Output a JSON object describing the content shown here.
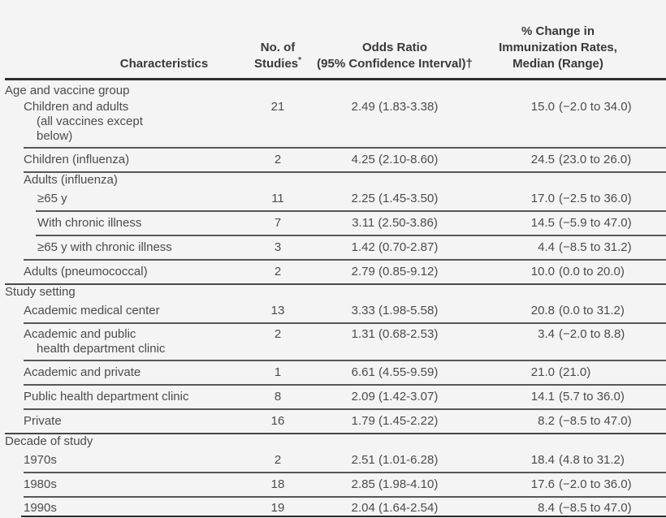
{
  "colors": {
    "background": "#f5f4f4",
    "body_text": "#4b4b4d",
    "header_text": "#39393b",
    "rule_gray": "#57575a",
    "rule_dark": "#2e2e30"
  },
  "table": {
    "header": {
      "characteristics": "Characteristics",
      "no_of_studies": [
        "No. of",
        "Studies"
      ],
      "no_of_studies_sup": "*",
      "odds_ratio": [
        "Odds Ratio",
        "(95% Confidence Interval)†"
      ],
      "pct_change": [
        "% Change in",
        "Immunization Rates,",
        "Median (Range)"
      ]
    },
    "rows": [
      {
        "type": "group",
        "indent": 0,
        "lines": [
          "Age and vaccine group"
        ],
        "rule": "none",
        "first": true
      },
      {
        "type": "data",
        "indent": 1,
        "lines": [
          "Children and adults",
          "(all vaccines except",
          "below)"
        ],
        "studies": "21",
        "odds_ratio": "2.49 (1.83-3.38)",
        "pct_median": "15.0",
        "pct_range": "(−2.0 to 34.0)",
        "rule": "thin-l1"
      },
      {
        "type": "data",
        "indent": 1,
        "lines": [
          "Children (influenza)"
        ],
        "studies": "2",
        "odds_ratio": "4.25 (2.10-8.60)",
        "pct_median": "24.5",
        "pct_range": "(23.0 to 26.0)",
        "rule": "thin-l1"
      },
      {
        "type": "group",
        "indent": 1,
        "lines": [
          "Adults (influenza)"
        ],
        "rule": "none"
      },
      {
        "type": "data",
        "indent": 2,
        "lines": [
          "≥65 y"
        ],
        "studies": "11",
        "odds_ratio": "2.25 (1.45-3.50)",
        "pct_median": "17.0",
        "pct_range": "(−2.5 to 36.0)",
        "rule": "thin-l2"
      },
      {
        "type": "data",
        "indent": 2,
        "lines": [
          "With chronic illness"
        ],
        "studies": "7",
        "odds_ratio": "3.11 (2.50-3.86)",
        "pct_median": "14.5",
        "pct_range": "(−5.9 to 47.0)",
        "rule": "thin-l2"
      },
      {
        "type": "data",
        "indent": 2,
        "lines": [
          "≥65 y with chronic illness"
        ],
        "studies": "3",
        "odds_ratio": "1.42 (0.70-2.87)",
        "pct_median": "4.4",
        "pct_range": "(−8.5 to 31.2)",
        "rule": "thin-l1"
      },
      {
        "type": "data",
        "indent": 1,
        "lines": [
          "Adults (pneumococcal)"
        ],
        "studies": "2",
        "odds_ratio": "2.79 (0.85-9.12)",
        "pct_median": "10.0",
        "pct_range": "(0.0 to 20.0)",
        "rule": "section"
      },
      {
        "type": "group",
        "indent": 0,
        "lines": [
          "Study setting"
        ],
        "rule": "none"
      },
      {
        "type": "data",
        "indent": 1,
        "lines": [
          "Academic medical center"
        ],
        "studies": "13",
        "odds_ratio": "3.33 (1.98-5.58)",
        "pct_median": "20.8",
        "pct_range": "(0.0 to 31.2)",
        "rule": "thin-l1"
      },
      {
        "type": "data",
        "indent": 1,
        "lines": [
          "Academic and public",
          "health department clinic"
        ],
        "studies": "2",
        "odds_ratio": "1.31 (0.68-2.53)",
        "pct_median": "3.4",
        "pct_range": "(−2.0 to 8.8)",
        "rule": "thin-l1"
      },
      {
        "type": "data",
        "indent": 1,
        "lines": [
          "Academic and private"
        ],
        "studies": "1",
        "odds_ratio": "6.61 (4.55-9.59)",
        "pct_median": "21.0",
        "pct_range": "(21.0)",
        "rule": "thin-l1"
      },
      {
        "type": "data",
        "indent": 1,
        "lines": [
          "Public health department clinic"
        ],
        "studies": "8",
        "odds_ratio": "2.09 (1.42-3.07)",
        "pct_median": "14.1",
        "pct_range": "(5.7 to 36.0)",
        "rule": "thin-l1"
      },
      {
        "type": "data",
        "indent": 1,
        "lines": [
          "Private"
        ],
        "studies": "16",
        "odds_ratio": "1.79 (1.45-2.22)",
        "pct_median": "8.2",
        "pct_range": "(−8.5 to 47.0)",
        "rule": "section"
      },
      {
        "type": "group",
        "indent": 0,
        "lines": [
          "Decade of study"
        ],
        "rule": "none"
      },
      {
        "type": "data",
        "indent": 1,
        "lines": [
          "1970s"
        ],
        "studies": "2",
        "odds_ratio": "2.51 (1.01-6.28)",
        "pct_median": "18.4",
        "pct_range": "(4.8 to 31.2)",
        "rule": "thin-l1"
      },
      {
        "type": "data",
        "indent": 1,
        "lines": [
          "1980s"
        ],
        "studies": "18",
        "odds_ratio": "2.85 (1.98-4.10)",
        "pct_median": "17.6",
        "pct_range": "(−2.0 to 36.0)",
        "rule": "thin-l1"
      },
      {
        "type": "data",
        "indent": 1,
        "lines": [
          "1990s"
        ],
        "studies": "19",
        "odds_ratio": "2.04 (1.64-2.54)",
        "pct_median": "8.4",
        "pct_range": "(−8.5 to 47.0)",
        "rule": "bottom",
        "last": true
      }
    ]
  }
}
